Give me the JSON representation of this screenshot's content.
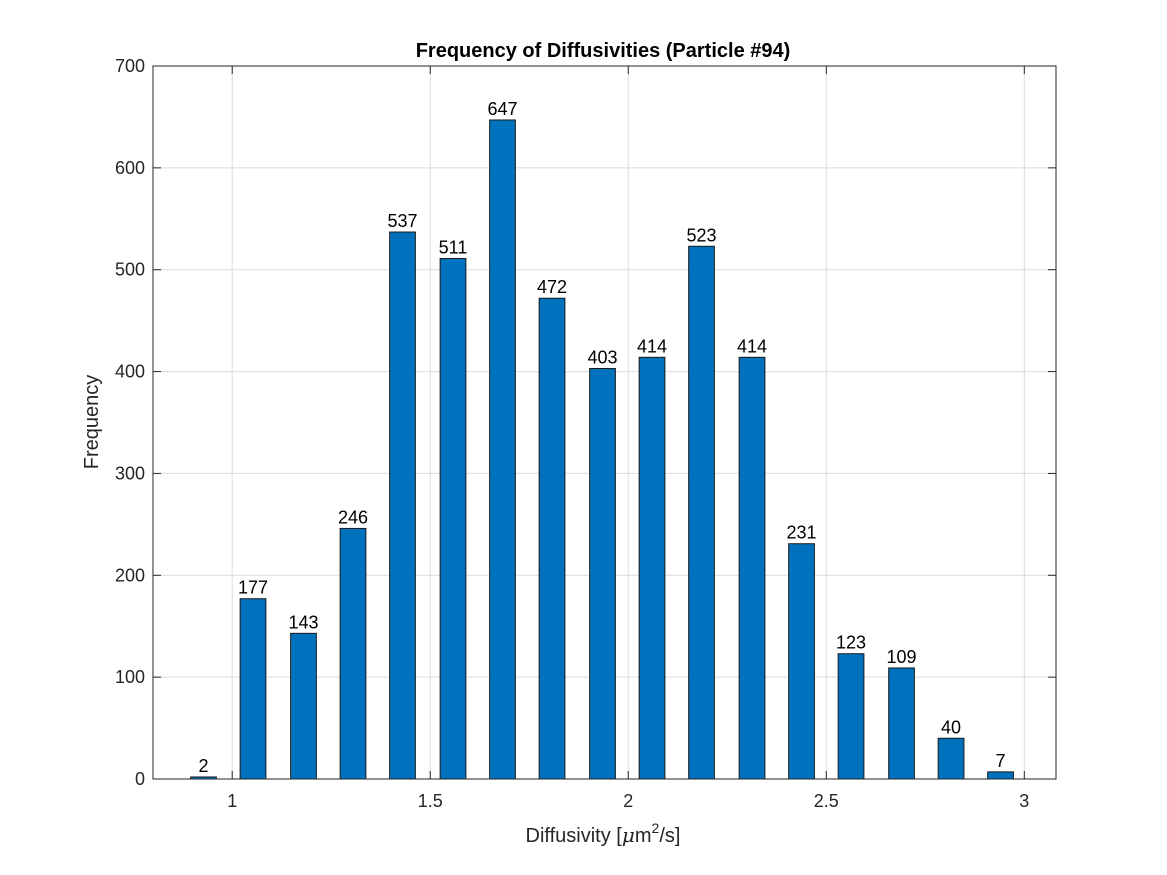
{
  "chart_data": {
    "type": "bar",
    "title": "Frequency of Diffusivities (Particle #94)",
    "xlabel": "Diffusivity [μm²/s]",
    "xlabel_parts": {
      "prefix": "Diffusivity [",
      "mu": "μ",
      "m": "m",
      "sup": "2",
      "suffix": "/s]"
    },
    "ylabel": "Frequency",
    "bar_color": "#0072BD",
    "grid": true,
    "xlim": [
      0.8,
      3.08
    ],
    "ylim": [
      0,
      700
    ],
    "xticks": [
      1,
      1.5,
      2,
      2.5,
      3
    ],
    "xtick_labels": [
      "1",
      "1.5",
      "2",
      "2.5",
      "3"
    ],
    "yticks": [
      0,
      100,
      200,
      300,
      400,
      500,
      600,
      700
    ],
    "ytick_labels": [
      "0",
      "100",
      "200",
      "300",
      "400",
      "500",
      "600",
      "700"
    ],
    "x": [
      0.9275,
      1.0525,
      1.18,
      1.305,
      1.43,
      1.5575,
      1.6825,
      1.8075,
      1.935,
      2.06,
      2.185,
      2.3125,
      2.4375,
      2.5625,
      2.69,
      2.815,
      2.94
    ],
    "values": [
      2,
      177,
      143,
      246,
      537,
      511,
      647,
      472,
      403,
      414,
      523,
      414,
      231,
      123,
      109,
      40,
      7
    ],
    "bar_width": 0.065
  }
}
